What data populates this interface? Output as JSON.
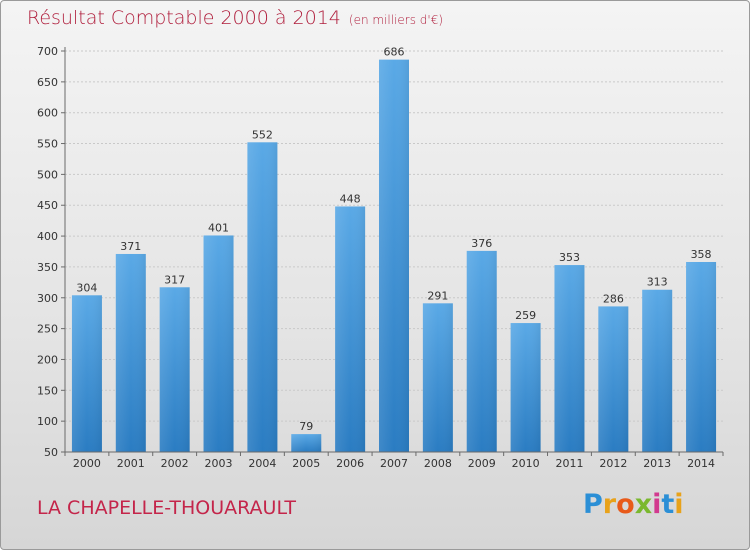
{
  "header": {
    "title": "Résultat Comptable 2000 à 2014",
    "subtitle": "(en milliers d'€)"
  },
  "footer": {
    "commune": "LA CHAPELLE-THOUARAULT",
    "logo_letters": [
      "P",
      "r",
      "o",
      "x",
      "i",
      "t",
      "i"
    ],
    "logo_colors": [
      "#2b8fd6",
      "#e8a21a",
      "#e85a1a",
      "#7ab82e",
      "#d23a8f",
      "#2b8fd6",
      "#e8a21a"
    ]
  },
  "colors": {
    "bar_top": "#5aa9e6",
    "bar_bottom": "#2a7cc2",
    "grid": "#c9c9c9",
    "axis": "#6a6a6a"
  },
  "chart_data": {
    "type": "bar",
    "title": "Résultat Comptable 2000 à 2014",
    "xlabel": "",
    "ylabel": "",
    "categories": [
      "2000",
      "2001",
      "2002",
      "2003",
      "2004",
      "2005",
      "2006",
      "2007",
      "2008",
      "2009",
      "2010",
      "2011",
      "2012",
      "2013",
      "2014"
    ],
    "values": [
      304,
      371,
      317,
      401,
      552,
      79,
      448,
      686,
      291,
      376,
      259,
      353,
      286,
      313,
      358
    ],
    "ylim": [
      50,
      700
    ],
    "yticks": [
      50,
      100,
      150,
      200,
      250,
      300,
      350,
      400,
      450,
      500,
      550,
      600,
      650,
      700
    ],
    "grid": true,
    "data_labels": true
  }
}
